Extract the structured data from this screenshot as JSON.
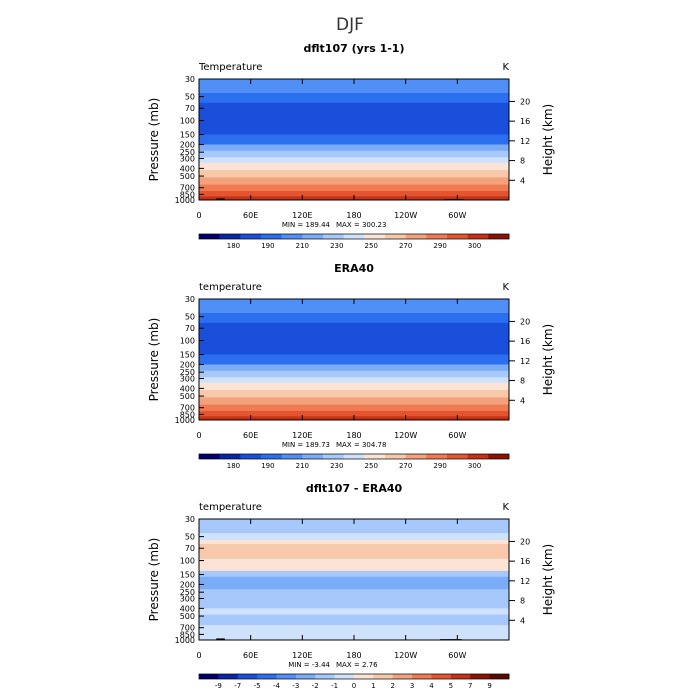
{
  "figure": {
    "title": "DJF"
  },
  "chart_data": [
    {
      "type": "heatmap",
      "title": "dflt107 (yrs 1-1)",
      "variable_label": "Temperature",
      "units": "K",
      "ylabel": "Pressure (mb)",
      "ylabel_right": "Height (km)",
      "x_ticks": [
        "0",
        "60E",
        "120E",
        "180",
        "120W",
        "60W"
      ],
      "y_ticks": [
        "30",
        "50",
        "70",
        "100",
        "150",
        "200",
        "250",
        "300",
        "400",
        "500",
        "700",
        "850",
        "1000"
      ],
      "y_ticks_right": [
        "20",
        "16",
        "12",
        "8",
        "4"
      ],
      "min_label": "MIN = 189.44",
      "max_label": "MAX = 300.23",
      "colorbar_labels": [
        "180",
        "190",
        "210",
        "230",
        "250",
        "270",
        "290",
        "300"
      ],
      "colorbar_colors": [
        "#00006c",
        "#0a26a8",
        "#1a4fdc",
        "#2b6ef0",
        "#4f8ff6",
        "#7aacf8",
        "#a6c8fa",
        "#cfe2fb",
        "#fbe4d6",
        "#f8c8aa",
        "#f4a27c",
        "#f07a52",
        "#e35530",
        "#c73015",
        "#8b1205"
      ],
      "bands": [
        {
          "p": 30,
          "color": "#4f8ff6"
        },
        {
          "p": 45,
          "color": "#2b6ef0"
        },
        {
          "p": 60,
          "color": "#1a4fdc"
        },
        {
          "p": 150,
          "color": "#2b6ef0"
        },
        {
          "p": 200,
          "color": "#7aacf8"
        },
        {
          "p": 240,
          "color": "#a6c8fa"
        },
        {
          "p": 290,
          "color": "#cfe2fb"
        },
        {
          "p": 340,
          "color": "#fbe4d6"
        },
        {
          "p": 420,
          "color": "#f8c8aa"
        },
        {
          "p": 520,
          "color": "#f4a27c"
        },
        {
          "p": 640,
          "color": "#f07a52"
        },
        {
          "p": 770,
          "color": "#e35530"
        },
        {
          "p": 900,
          "color": "#c73015"
        },
        {
          "p": 1000,
          "color": "#c73015"
        }
      ],
      "terrain": [
        {
          "lon": [
            3,
            22
          ],
          "p": 985
        },
        {
          "lon": [
            20,
            30
          ],
          "p": 955
        },
        {
          "lon": [
            285,
            307
          ],
          "p": 975
        }
      ]
    },
    {
      "type": "heatmap",
      "title": "ERA40",
      "variable_label": "temperature",
      "units": "K",
      "ylabel": "Pressure (mb)",
      "ylabel_right": "Height (km)",
      "x_ticks": [
        "0",
        "60E",
        "120E",
        "180",
        "120W",
        "60W"
      ],
      "y_ticks": [
        "30",
        "50",
        "70",
        "100",
        "150",
        "200",
        "250",
        "300",
        "400",
        "500",
        "700",
        "850",
        "1000"
      ],
      "y_ticks_right": [
        "20",
        "16",
        "12",
        "8",
        "4"
      ],
      "min_label": "MIN = 189.73",
      "max_label": "MAX = 304.78",
      "colorbar_labels": [
        "180",
        "190",
        "210",
        "230",
        "250",
        "270",
        "290",
        "300"
      ],
      "colorbar_colors": [
        "#00006c",
        "#0a26a8",
        "#1a4fdc",
        "#2b6ef0",
        "#4f8ff6",
        "#7aacf8",
        "#a6c8fa",
        "#cfe2fb",
        "#fbe4d6",
        "#f8c8aa",
        "#f4a27c",
        "#f07a52",
        "#e35530",
        "#c73015",
        "#8b1205"
      ],
      "bands": [
        {
          "p": 30,
          "color": "#4f8ff6"
        },
        {
          "p": 45,
          "color": "#2b6ef0"
        },
        {
          "p": 60,
          "color": "#1a4fdc"
        },
        {
          "p": 150,
          "color": "#2b6ef0"
        },
        {
          "p": 200,
          "color": "#7aacf8"
        },
        {
          "p": 240,
          "color": "#a6c8fa"
        },
        {
          "p": 290,
          "color": "#cfe2fb"
        },
        {
          "p": 340,
          "color": "#fbe4d6"
        },
        {
          "p": 420,
          "color": "#f8c8aa"
        },
        {
          "p": 520,
          "color": "#f4a27c"
        },
        {
          "p": 640,
          "color": "#f07a52"
        },
        {
          "p": 770,
          "color": "#e35530"
        },
        {
          "p": 900,
          "color": "#c73015"
        },
        {
          "p": 1000,
          "color": "#c73015"
        }
      ],
      "terrain": []
    },
    {
      "type": "heatmap",
      "title": "dflt107 - ERA40",
      "variable_label": "temperature",
      "units": "K",
      "ylabel": "Pressure (mb)",
      "ylabel_right": "Height (km)",
      "x_ticks": [
        "0",
        "60E",
        "120E",
        "180",
        "120W",
        "60W"
      ],
      "y_ticks": [
        "30",
        "50",
        "70",
        "100",
        "150",
        "200",
        "250",
        "300",
        "400",
        "500",
        "700",
        "850",
        "1000"
      ],
      "y_ticks_right": [
        "20",
        "16",
        "12",
        "8",
        "4"
      ],
      "min_label": "MIN = -3.44",
      "max_label": "MAX = 2.76",
      "colorbar_labels": [
        "-9",
        "-7",
        "-5",
        "-4",
        "-3",
        "-2",
        "-1",
        "0",
        "1",
        "2",
        "3",
        "4",
        "5",
        "7",
        "9"
      ],
      "colorbar_colors": [
        "#00006c",
        "#0a26a8",
        "#1a4fdc",
        "#2b6ef0",
        "#4f8ff6",
        "#7aacf8",
        "#a6c8fa",
        "#cfe2fb",
        "#fbe4d6",
        "#f8c8aa",
        "#f4a27c",
        "#f07a52",
        "#e35530",
        "#c73015",
        "#8b1205",
        "#5a0a00"
      ],
      "bands": [
        {
          "p": 30,
          "color": "#a6c8fa"
        },
        {
          "p": 45,
          "color": "#cfe2fb"
        },
        {
          "p": 55,
          "color": "#fbe4d6"
        },
        {
          "p": 62,
          "color": "#f8c8aa"
        },
        {
          "p": 95,
          "color": "#fbe4d6"
        },
        {
          "p": 135,
          "color": "#a6c8fa"
        },
        {
          "p": 160,
          "color": "#7aacf8"
        },
        {
          "p": 230,
          "color": "#a6c8fa"
        },
        {
          "p": 400,
          "color": "#cfe2fb"
        },
        {
          "p": 480,
          "color": "#a6c8fa"
        },
        {
          "p": 650,
          "color": "#cfe2fb"
        },
        {
          "p": 1000,
          "color": "#cfe2fb"
        }
      ],
      "terrain": [
        {
          "lon": [
            5,
            22
          ],
          "p": 985
        },
        {
          "lon": [
            20,
            30
          ],
          "p": 955
        },
        {
          "lon": [
            280,
            305
          ],
          "p": 975
        }
      ]
    }
  ]
}
